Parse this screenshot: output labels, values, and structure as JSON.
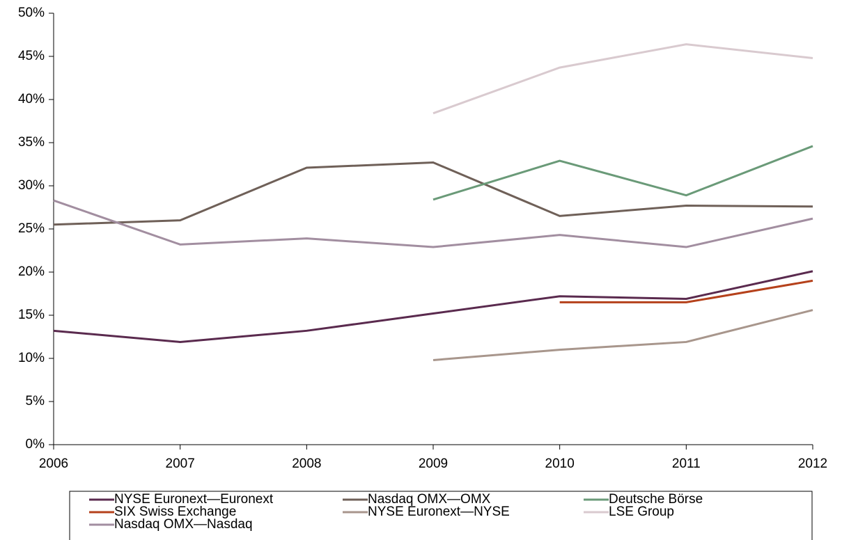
{
  "chart_data": {
    "type": "line",
    "x": [
      2006,
      2007,
      2008,
      2009,
      2010,
      2011,
      2012
    ],
    "xlim": [
      2006,
      2012
    ],
    "xticks": [
      2006,
      2007,
      2008,
      2009,
      2010,
      2011,
      2012
    ],
    "ylim": [
      0,
      50
    ],
    "yticks": [
      {
        "value": 0,
        "label": "0%"
      },
      {
        "value": 5,
        "label": "5%"
      },
      {
        "value": 10,
        "label": "10%"
      },
      {
        "value": 15,
        "label": "15%"
      },
      {
        "value": 20,
        "label": "20%"
      },
      {
        "value": 25,
        "label": "25%"
      },
      {
        "value": 30,
        "label": "30%"
      },
      {
        "value": 35,
        "label": "35%"
      },
      {
        "value": 40,
        "label": "40%"
      },
      {
        "value": 45,
        "label": "45%"
      },
      {
        "value": 50,
        "label": "50%"
      }
    ],
    "grid": false,
    "legend": "bottom",
    "series": [
      {
        "name": "NYSE Euronext—Euronext",
        "color": "#5a2a4e",
        "values": [
          13.2,
          11.9,
          13.2,
          15.2,
          17.2,
          16.9,
          20.1
        ]
      },
      {
        "name": "Nasdaq OMX—OMX",
        "color": "#6f6058",
        "values": [
          25.5,
          26.0,
          32.1,
          32.7,
          26.5,
          27.7,
          27.6
        ]
      },
      {
        "name": "Deutsche Börse",
        "color": "#6a9a78",
        "values": [
          null,
          null,
          null,
          28.4,
          32.9,
          28.9,
          34.6
        ]
      },
      {
        "name": "SIX Swiss Exchange",
        "color": "#b5411b",
        "values": [
          null,
          null,
          null,
          null,
          16.5,
          16.5,
          19.0
        ]
      },
      {
        "name": "NYSE Euronext—NYSE",
        "color": "#a8968c",
        "values": [
          null,
          null,
          null,
          9.8,
          11.0,
          11.9,
          15.6
        ]
      },
      {
        "name": "LSE Group",
        "color": "#d9cacf",
        "values": [
          null,
          null,
          null,
          38.4,
          43.7,
          46.4,
          44.8
        ]
      },
      {
        "name": "Nasdaq OMX—Nasdaq",
        "color": "#a28ea0",
        "values": [
          28.3,
          23.2,
          23.9,
          22.9,
          24.3,
          22.9,
          26.2
        ]
      }
    ]
  }
}
